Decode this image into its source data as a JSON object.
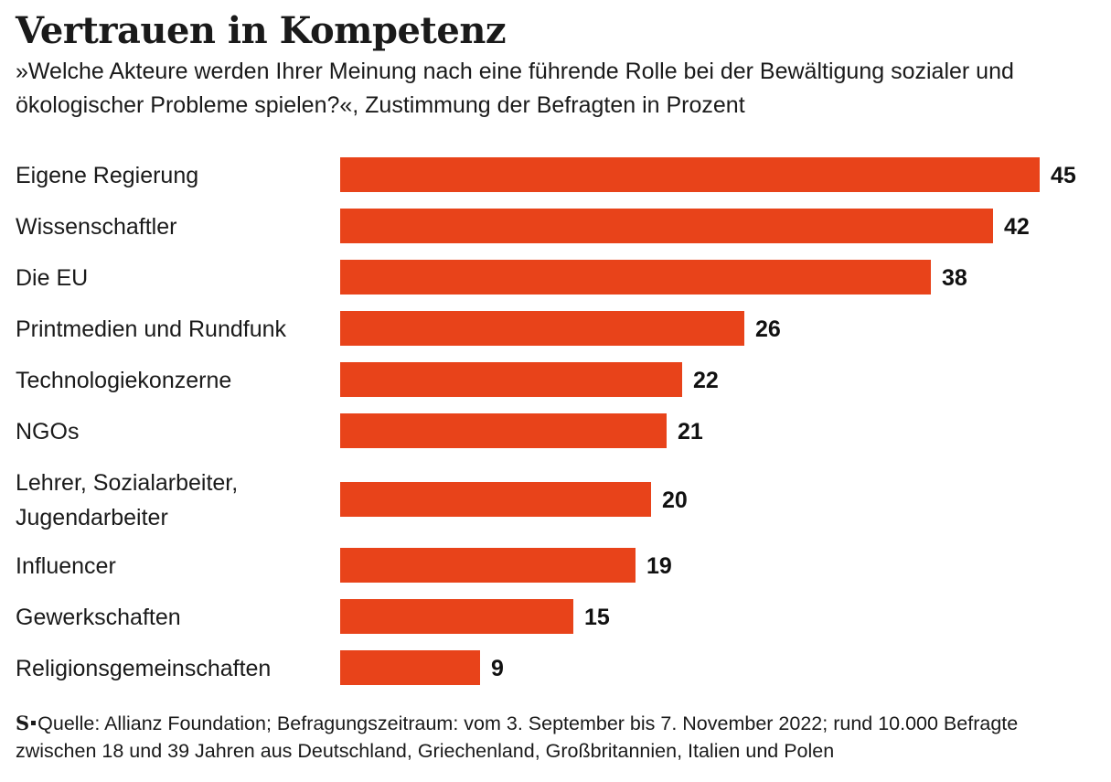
{
  "header": {
    "title": "Vertrauen in Kompetenz",
    "subtitle": "»Welche Akteure werden Ihrer Meinung nach eine führende Rolle bei der Bewältigung sozialer und ökologischer Probleme spielen?«, Zustimmung der Befragten in Prozent"
  },
  "chart_data": {
    "type": "bar",
    "orientation": "horizontal",
    "title": "Vertrauen in Kompetenz",
    "subtitle": "»Welche Akteure werden Ihrer Meinung nach eine führende Rolle bei der Bewältigung sozialer und ökologischer Probleme spielen?«, Zustimmung der Befragten in Prozent",
    "categories": [
      "Eigene Regierung",
      "Wissenschaftler",
      "Die EU",
      "Printmedien und Rundfunk",
      "Technologiekonzerne",
      "NGOs",
      "Lehrer, Sozialarbeiter, Jugendarbeiter",
      "Influencer",
      "Gewerkschaften",
      "Religionsgemeinschaften"
    ],
    "category_lines": [
      [
        "Eigene Regierung"
      ],
      [
        "Wissenschaftler"
      ],
      [
        "Die EU"
      ],
      [
        "Printmedien und Rundfunk"
      ],
      [
        "Technologiekonzerne"
      ],
      [
        "NGOs"
      ],
      [
        "Lehrer, Sozialarbeiter,",
        "Jugendarbeiter"
      ],
      [
        "Influencer"
      ],
      [
        "Gewerkschaften"
      ],
      [
        "Religionsgemeinschaften"
      ]
    ],
    "values": [
      45,
      42,
      38,
      26,
      22,
      21,
      20,
      19,
      15,
      9
    ],
    "xlim": [
      0,
      45
    ],
    "data_labels": true,
    "grid": false,
    "legend": "none",
    "bar_color": "#e8431a",
    "xlabel": "",
    "ylabel": ""
  },
  "footer": {
    "logo_letter": "S",
    "source": "Quelle: Allianz Foundation; Befragungszeitraum: vom 3. September bis 7. November 2022; rund 10.000 Befragte zwischen 18 und 39 Jahren aus Deutschland, Griechenland, Großbritannien, Italien und Polen"
  }
}
